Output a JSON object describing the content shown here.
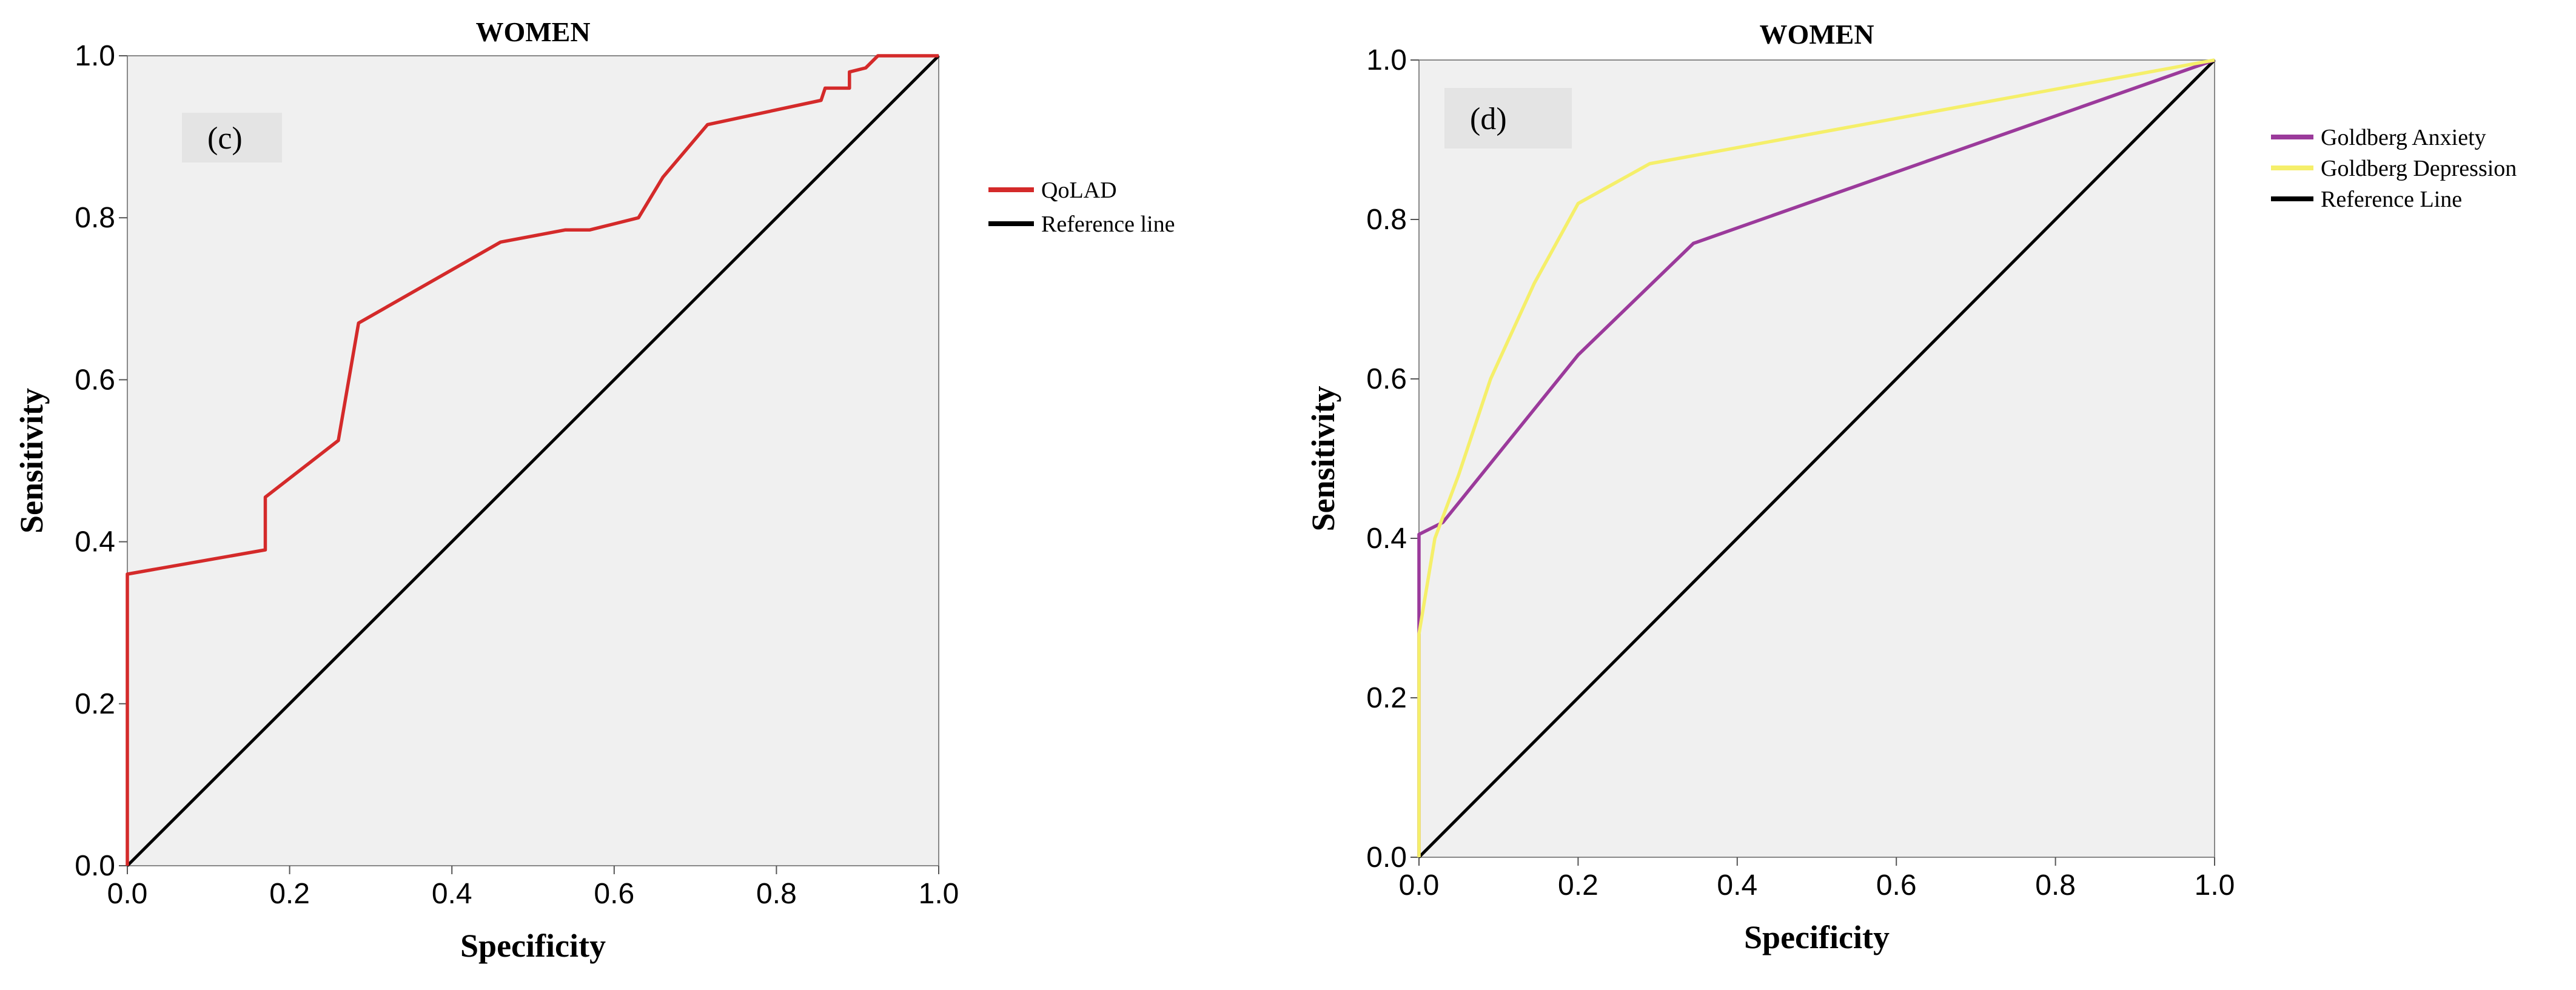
{
  "chart_data": [
    {
      "type": "line",
      "title": "WOMEN",
      "panel_label": "(c)",
      "xlabel": "Specificity",
      "ylabel": "Sensitivity",
      "xlim": [
        0,
        1
      ],
      "ylim": [
        0,
        1
      ],
      "xticks": [
        "0.0",
        "0.2",
        "0.4",
        "0.6",
        "0.8",
        "1.0"
      ],
      "yticks": [
        "0.0",
        "0.2",
        "0.4",
        "0.6",
        "0.8",
        "1.0"
      ],
      "legend_position": "right",
      "series": [
        {
          "name": "QoLAD",
          "color": "#d42a2a",
          "points": [
            [
              0.0,
              0.0
            ],
            [
              0.0,
              0.36
            ],
            [
              0.17,
              0.39
            ],
            [
              0.17,
              0.455
            ],
            [
              0.26,
              0.525
            ],
            [
              0.285,
              0.67
            ],
            [
              0.46,
              0.77
            ],
            [
              0.54,
              0.785
            ],
            [
              0.57,
              0.785
            ],
            [
              0.63,
              0.8
            ],
            [
              0.66,
              0.85
            ],
            [
              0.715,
              0.915
            ],
            [
              0.855,
              0.945
            ],
            [
              0.86,
              0.96
            ],
            [
              0.89,
              0.96
            ],
            [
              0.89,
              0.98
            ],
            [
              0.91,
              0.985
            ],
            [
              0.925,
              1.0
            ],
            [
              1.0,
              1.0
            ]
          ]
        },
        {
          "name": "Reference line",
          "color": "#000000",
          "points": [
            [
              0.0,
              0.0
            ],
            [
              1.0,
              1.0
            ]
          ]
        }
      ]
    },
    {
      "type": "line",
      "title": "WOMEN",
      "panel_label": "(d)",
      "xlabel": "Specificity",
      "ylabel": "Sensitivity",
      "xlim": [
        0,
        1
      ],
      "ylim": [
        0,
        1
      ],
      "xticks": [
        "0.0",
        "0.2",
        "0.4",
        "0.6",
        "0.8",
        "1.0"
      ],
      "yticks": [
        "0.0",
        "0.2",
        "0.4",
        "0.6",
        "0.8",
        "1.0"
      ],
      "legend_position": "right",
      "series": [
        {
          "name": "Goldberg Anxiety",
          "color": "#9b3a9b",
          "points": [
            [
              0.0,
              0.0
            ],
            [
              0.0,
              0.405
            ],
            [
              0.03,
              0.42
            ],
            [
              0.2,
              0.63
            ],
            [
              0.345,
              0.77
            ],
            [
              1.0,
              1.0
            ]
          ]
        },
        {
          "name": "Goldberg Depression",
          "color": "#f5ef6a",
          "points": [
            [
              0.0,
              0.0
            ],
            [
              0.0,
              0.28
            ],
            [
              0.02,
              0.4
            ],
            [
              0.05,
              0.48
            ],
            [
              0.09,
              0.6
            ],
            [
              0.145,
              0.72
            ],
            [
              0.2,
              0.82
            ],
            [
              0.29,
              0.87
            ],
            [
              1.0,
              1.0
            ]
          ]
        },
        {
          "name": "Reference Line",
          "color": "#000000",
          "points": [
            [
              0.0,
              0.0
            ],
            [
              1.0,
              1.0
            ]
          ]
        }
      ]
    }
  ]
}
